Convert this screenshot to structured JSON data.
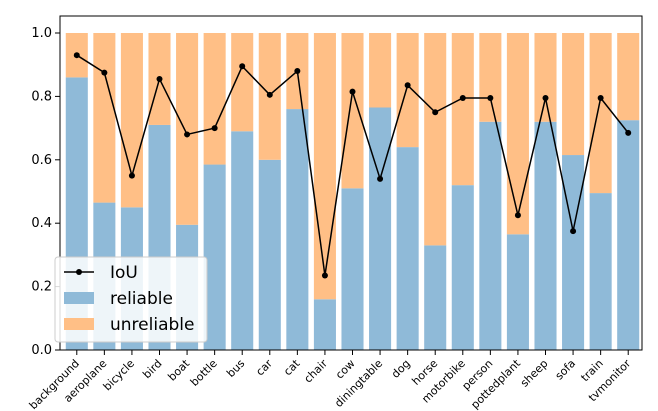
{
  "chart_data": {
    "type": "bar",
    "stacked": true,
    "categories": [
      "background",
      "aeroplane",
      "bicycle",
      "bird",
      "boat",
      "bottle",
      "bus",
      "car",
      "cat",
      "chair",
      "cow",
      "diningtable",
      "dog",
      "horse",
      "motorbike",
      "person",
      "pottedplant",
      "sheep",
      "sofa",
      "train",
      "tvmonitor"
    ],
    "series": [
      {
        "name": "reliable",
        "type": "bar",
        "color": "#8fbad8",
        "values": [
          0.86,
          0.465,
          0.45,
          0.71,
          0.395,
          0.585,
          0.69,
          0.6,
          0.76,
          0.16,
          0.51,
          0.765,
          0.64,
          0.33,
          0.52,
          0.72,
          0.365,
          0.72,
          0.615,
          0.495,
          0.725
        ]
      },
      {
        "name": "unreliable",
        "type": "bar",
        "color": "#ffbf86",
        "values": [
          0.14,
          0.535,
          0.55,
          0.29,
          0.605,
          0.415,
          0.31,
          0.4,
          0.24,
          0.84,
          0.49,
          0.235,
          0.36,
          0.67,
          0.48,
          0.28,
          0.635,
          0.28,
          0.385,
          0.505,
          0.275
        ]
      },
      {
        "name": "IoU",
        "type": "line",
        "color": "#000000",
        "values": [
          0.93,
          0.875,
          0.55,
          0.855,
          0.68,
          0.7,
          0.895,
          0.805,
          0.88,
          0.235,
          0.815,
          0.54,
          0.835,
          0.75,
          0.795,
          0.795,
          0.425,
          0.795,
          0.375,
          0.795,
          0.685
        ]
      }
    ],
    "ylim": [
      0,
      1.0
    ],
    "yticks": [
      "0.0",
      "0.2",
      "0.4",
      "0.6",
      "0.8",
      "1.0"
    ],
    "xlabel": "",
    "ylabel": "",
    "legend_position": "lower-left",
    "grid": false
  }
}
